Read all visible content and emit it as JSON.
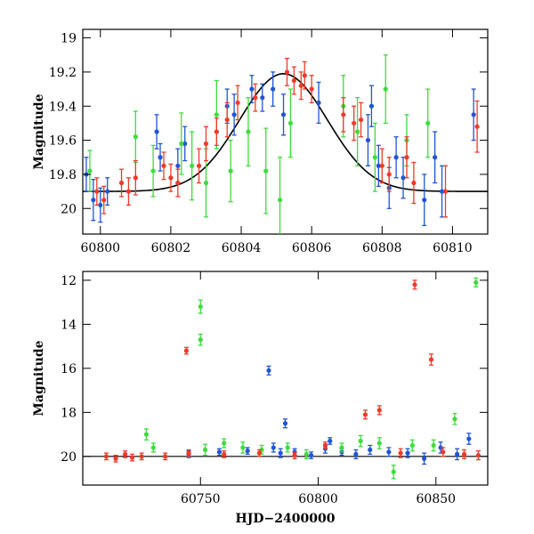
{
  "colors": {
    "blue": "#1f55d6",
    "green": "#3ddc3d",
    "red": "#f03a28",
    "model": "#000000"
  },
  "chart_data": [
    {
      "type": "scatter",
      "xlabel": "",
      "ylabel": "Magnitude",
      "xlim": [
        60799.5,
        60811.0
      ],
      "ylim": [
        20.15,
        18.95
      ],
      "y_inverted": true,
      "xticks": [
        60800,
        60802,
        60804,
        60806,
        60808,
        60810
      ],
      "xtick_labels": [
        "60800",
        "60802",
        "60804",
        "60806",
        "60808",
        "60810"
      ],
      "yticks": [
        19,
        19.2,
        19.4,
        19.6,
        19.8,
        20
      ],
      "ytick_labels": [
        "19",
        "19.2",
        "19.4",
        "19.6",
        "19.8",
        "20"
      ],
      "model": {
        "type": "gaussian",
        "baseline": 19.9,
        "peak_mag": 19.21,
        "t0": 60805.2,
        "sigma": 1.25
      },
      "series": [
        {
          "color": "blue",
          "points": [
            [
              60799.6,
              19.8,
              0.1
            ],
            [
              60799.8,
              19.95,
              0.12
            ],
            [
              60800.0,
              19.98,
              0.1
            ],
            [
              60800.2,
              19.9,
              0.08
            ],
            [
              60801.6,
              19.55,
              0.1
            ],
            [
              60801.7,
              19.7,
              0.08
            ],
            [
              60802.2,
              19.75,
              0.1
            ],
            [
              60802.4,
              19.62,
              0.1
            ],
            [
              60803.6,
              19.4,
              0.1
            ],
            [
              60803.8,
              19.45,
              0.12
            ],
            [
              60804.3,
              19.3,
              0.08
            ],
            [
              60804.6,
              19.35,
              0.08
            ],
            [
              60804.9,
              19.3,
              0.1
            ],
            [
              60805.2,
              19.45,
              0.12
            ],
            [
              60806.2,
              19.38,
              0.12
            ],
            [
              60807.6,
              19.6,
              0.15
            ],
            [
              60807.7,
              19.4,
              0.12
            ],
            [
              60807.9,
              19.75,
              0.12
            ],
            [
              60808.2,
              19.88,
              0.12
            ],
            [
              60808.4,
              19.7,
              0.12
            ],
            [
              60808.6,
              19.82,
              0.12
            ],
            [
              60809.2,
              19.95,
              0.15
            ],
            [
              60809.5,
              19.7,
              0.15
            ],
            [
              60809.7,
              19.9,
              0.15
            ],
            [
              60810.6,
              19.45,
              0.15
            ]
          ]
        },
        {
          "color": "green",
          "points": [
            [
              60799.7,
              19.78,
              0.12
            ],
            [
              60801.0,
              19.58,
              0.15
            ],
            [
              60801.5,
              19.78,
              0.15
            ],
            [
              60802.3,
              19.62,
              0.18
            ],
            [
              60802.6,
              19.75,
              0.2
            ],
            [
              60803.0,
              19.85,
              0.2
            ],
            [
              60803.3,
              19.45,
              0.2
            ],
            [
              60803.7,
              19.78,
              0.18
            ],
            [
              60804.2,
              19.55,
              0.2
            ],
            [
              60804.7,
              19.78,
              0.25
            ],
            [
              60805.1,
              19.95,
              0.25
            ],
            [
              60805.4,
              19.5,
              0.2
            ],
            [
              60806.9,
              19.4,
              0.18
            ],
            [
              60807.3,
              19.55,
              0.2
            ],
            [
              60807.8,
              19.7,
              0.2
            ],
            [
              60808.1,
              19.3,
              0.2
            ],
            [
              60808.7,
              19.6,
              0.15
            ],
            [
              60809.3,
              19.5,
              0.2
            ]
          ]
        },
        {
          "color": "red",
          "points": [
            [
              60799.9,
              19.9,
              0.08
            ],
            [
              60800.1,
              19.95,
              0.08
            ],
            [
              60800.6,
              19.85,
              0.08
            ],
            [
              60800.8,
              19.9,
              0.08
            ],
            [
              60801.0,
              19.82,
              0.1
            ],
            [
              60801.8,
              19.75,
              0.08
            ],
            [
              60802.0,
              19.82,
              0.08
            ],
            [
              60802.2,
              19.85,
              0.08
            ],
            [
              60802.8,
              19.75,
              0.1
            ],
            [
              60803.0,
              19.62,
              0.1
            ],
            [
              60803.3,
              19.55,
              0.08
            ],
            [
              60803.6,
              19.48,
              0.1
            ],
            [
              60803.9,
              19.38,
              0.1
            ],
            [
              60804.4,
              19.35,
              0.08
            ],
            [
              60805.3,
              19.2,
              0.08
            ],
            [
              60805.5,
              19.25,
              0.08
            ],
            [
              60805.7,
              19.28,
              0.08
            ],
            [
              60805.8,
              19.22,
              0.08
            ],
            [
              60806.0,
              19.3,
              0.08
            ],
            [
              60806.9,
              19.45,
              0.1
            ],
            [
              60807.2,
              19.5,
              0.1
            ],
            [
              60807.4,
              19.48,
              0.1
            ],
            [
              60808.0,
              19.75,
              0.1
            ],
            [
              60808.2,
              19.8,
              0.1
            ],
            [
              60808.7,
              19.7,
              0.12
            ],
            [
              60808.9,
              19.85,
              0.12
            ],
            [
              60809.8,
              19.9,
              0.15
            ],
            [
              60810.7,
              19.52,
              0.15
            ]
          ]
        }
      ]
    },
    {
      "type": "scatter",
      "xlabel": "HJD−2400000",
      "ylabel": "Magnitude",
      "xlim": [
        60700,
        60872
      ],
      "ylim": [
        21.3,
        11.6
      ],
      "y_inverted": true,
      "xticks": [
        60750,
        60800,
        60850
      ],
      "xtick_labels": [
        "60750",
        "60800",
        "60850"
      ],
      "yticks": [
        12,
        14,
        16,
        18,
        20
      ],
      "ytick_labels": [
        "12",
        "14",
        "16",
        "18",
        "20"
      ],
      "baseline": 20.0,
      "series": [
        {
          "color": "blue",
          "points": [
            [
              60745,
              19.9,
              0.15
            ],
            [
              60758,
              19.8,
              0.15
            ],
            [
              60770,
              19.75,
              0.15
            ],
            [
              60779,
              16.1,
              0.2
            ],
            [
              60781,
              19.6,
              0.2
            ],
            [
              60784,
              19.85,
              0.2
            ],
            [
              60786,
              18.5,
              0.2
            ],
            [
              60790,
              19.8,
              0.15
            ],
            [
              60797,
              19.95,
              0.15
            ],
            [
              60803,
              19.65,
              0.2
            ],
            [
              60805,
              19.3,
              0.15
            ],
            [
              60810,
              19.8,
              0.15
            ],
            [
              60816,
              19.9,
              0.2
            ],
            [
              60822,
              19.7,
              0.2
            ],
            [
              60830,
              19.8,
              0.2
            ],
            [
              60838,
              19.85,
              0.2
            ],
            [
              60845,
              20.1,
              0.25
            ],
            [
              60852,
              19.6,
              0.25
            ],
            [
              60859,
              19.9,
              0.25
            ],
            [
              60864,
              19.2,
              0.25
            ]
          ]
        },
        {
          "color": "green",
          "points": [
            [
              60727,
              19.0,
              0.25
            ],
            [
              60730,
              19.6,
              0.2
            ],
            [
              60750,
              13.2,
              0.3
            ],
            [
              60750,
              14.7,
              0.25
            ],
            [
              60752,
              19.7,
              0.25
            ],
            [
              60760,
              19.4,
              0.2
            ],
            [
              60768,
              19.6,
              0.25
            ],
            [
              60776,
              19.7,
              0.2
            ],
            [
              60787,
              19.6,
              0.2
            ],
            [
              60795,
              19.9,
              0.2
            ],
            [
              60810,
              19.6,
              0.2
            ],
            [
              60818,
              19.3,
              0.25
            ],
            [
              60826,
              19.4,
              0.25
            ],
            [
              60832,
              20.7,
              0.3
            ],
            [
              60840,
              19.5,
              0.25
            ],
            [
              60849,
              19.5,
              0.25
            ],
            [
              60858,
              18.3,
              0.25
            ],
            [
              60867,
              12.1,
              0.2
            ]
          ]
        },
        {
          "color": "red",
          "points": [
            [
              60710,
              20.0,
              0.15
            ],
            [
              60714,
              20.1,
              0.15
            ],
            [
              60718,
              19.9,
              0.15
            ],
            [
              60721,
              20.05,
              0.15
            ],
            [
              60725,
              20.0,
              0.15
            ],
            [
              60735,
              20.0,
              0.15
            ],
            [
              60744,
              15.2,
              0.15
            ],
            [
              60745,
              19.85,
              0.15
            ],
            [
              60760,
              19.9,
              0.15
            ],
            [
              60775,
              19.85,
              0.15
            ],
            [
              60790,
              19.95,
              0.15
            ],
            [
              60803,
              19.5,
              0.15
            ],
            [
              60820,
              18.1,
              0.2
            ],
            [
              60826,
              17.9,
              0.2
            ],
            [
              60835,
              19.85,
              0.2
            ],
            [
              60841,
              12.2,
              0.2
            ],
            [
              60848,
              15.6,
              0.25
            ],
            [
              60853,
              19.8,
              0.2
            ],
            [
              60862,
              19.9,
              0.2
            ],
            [
              60868,
              19.95,
              0.2
            ]
          ]
        }
      ]
    }
  ]
}
